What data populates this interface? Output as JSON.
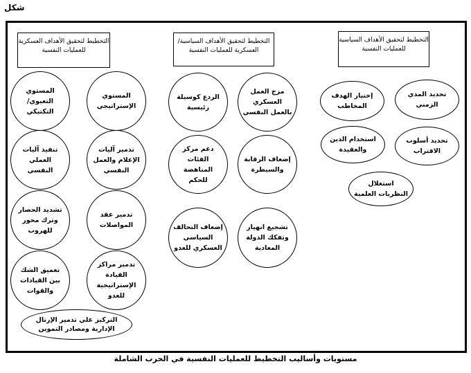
{
  "figure_label": "شكل",
  "caption": "مستويات وأساليب التخطيط للعمليات النفسية في الحرب الشاملة",
  "columns": [
    {
      "header": "التخطيط لتحقيق الأهداف العسكرية للعمليات النفسية",
      "items": [
        "المستوي الإستراتيجي",
        "المستوي التعبوي/ التكتيكي",
        "تدمير آليات الإعلام والعمل النفسي",
        "تنفيذ آليات العملي النفسي",
        "تدمير عقد المواصلات",
        "تشديد الحصار وترك محور للهروب",
        "تدمير مراكز القيادة الإستراتيجية للعدو",
        "تعميق الشك بين القيادات والقوات",
        "التركيز علي تدمير الإرتال الإدارية ومصادر التموين"
      ]
    },
    {
      "header": "التخطيط لتحقيق الأهداف السياسية/ العسكرية للعمليات النفسية",
      "items": [
        "مزج العمل العسكري بالعمل النفسي",
        "الردع كوسيلة رئيسية",
        "إضعاف الرقابة والسيطرة",
        "دعم مركز الفئات المناهضة للحكم",
        "تشجيع انهيار وتفكك الدولة المعادية",
        "إضعاف التحالف السياسي العسكري للعدو"
      ]
    },
    {
      "header": "التخطيط لتحقيق الأهداف السياسية للعمليات النفسية",
      "items": [
        "تحديد المدي الزمني",
        "إختيار الهدف المخاطب",
        "تحديد أسلوب الاقتراب",
        "استخدام الدين والعقيدة",
        "استغلال النظريات العلمية"
      ]
    }
  ]
}
